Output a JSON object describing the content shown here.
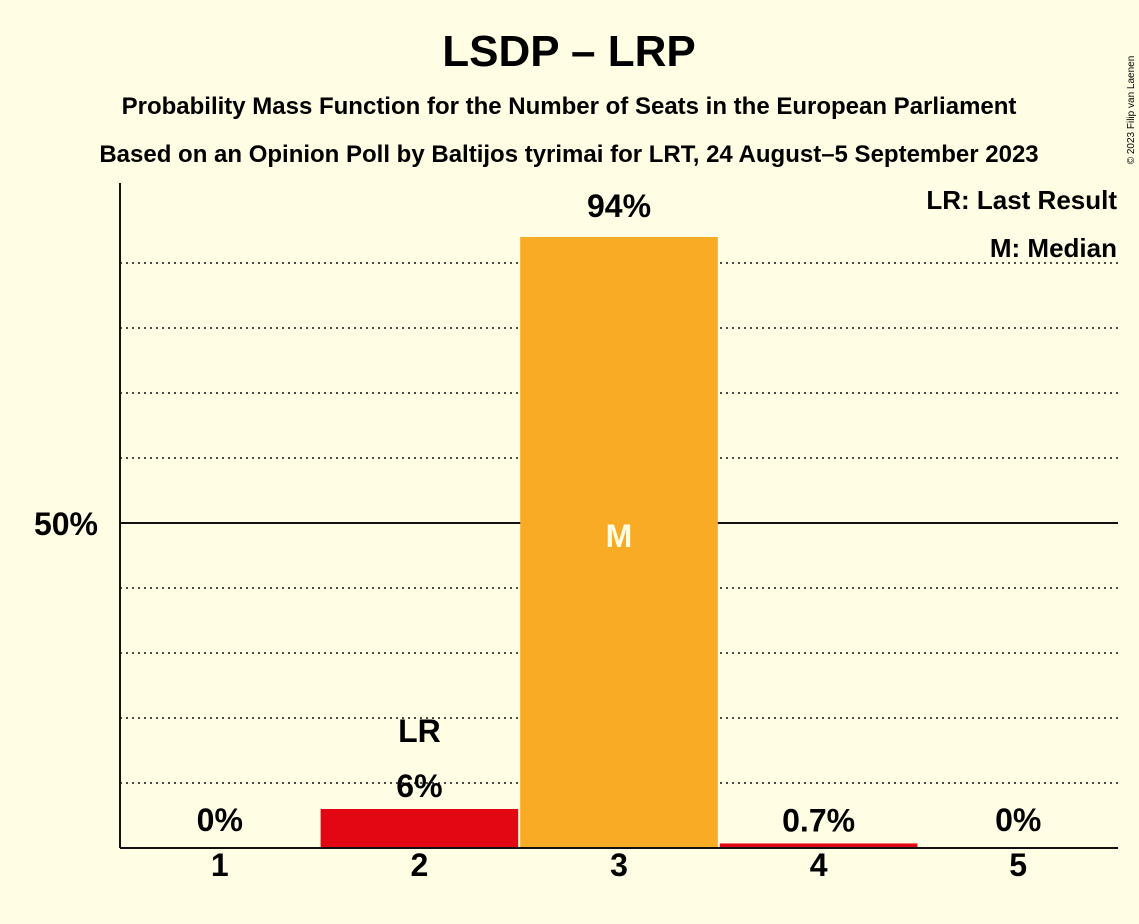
{
  "chart_data": {
    "type": "bar",
    "title": "LSDP – LRP",
    "subtitle_line1": "Probability Mass Function for the Number of Seats in the European Parliament",
    "subtitle_line2": "Based on an Opinion Poll by Baltijos tyrimai for LRT, 24 August–5 September 2023",
    "copyright": "© 2023 Filip van Laenen",
    "categories": [
      "1",
      "2",
      "3",
      "4",
      "5"
    ],
    "values": [
      0,
      6,
      94,
      0.7,
      0
    ],
    "value_labels": [
      "0%",
      "6%",
      "94%",
      "0.7%",
      "0%"
    ],
    "ylim": [
      0,
      100
    ],
    "y_gridlines": [
      10,
      20,
      30,
      40,
      50,
      60,
      70,
      80,
      90
    ],
    "y_tick_labels": [
      {
        "value": 50,
        "label": "50%"
      }
    ],
    "last_result_category": "2",
    "last_result_label": "LR",
    "median_category": "3",
    "median_label": "M",
    "legend": {
      "position": "top-right",
      "lines": [
        "LR: Last Result",
        "M: Median"
      ]
    },
    "colors": {
      "background": "#FFFDE4",
      "bar_default": "#E30613",
      "bar_median": "#F9AB25",
      "text": "#111111",
      "gridline": "#111111"
    }
  }
}
